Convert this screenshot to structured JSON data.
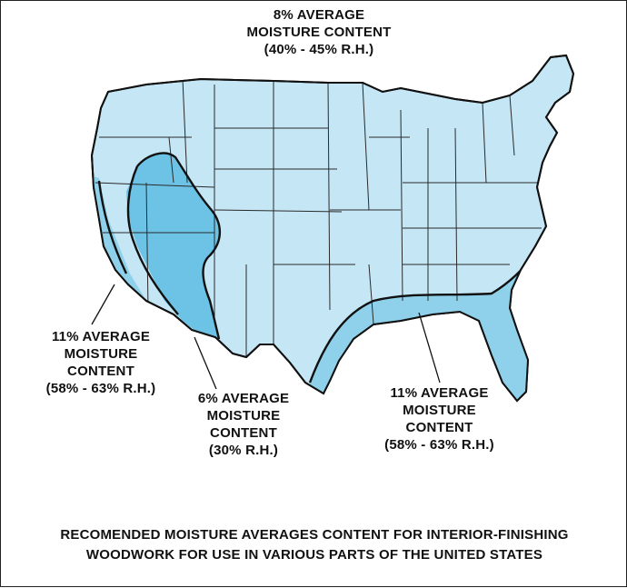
{
  "colors": {
    "region_8": "#c5e6f5",
    "region_11": "#8fd0ea",
    "region_6": "#6cc3e5",
    "state_lines": "#2a2a2a",
    "zone_lines": "#111111"
  },
  "labels": {
    "north": {
      "line1": "8% AVERAGE",
      "line2": "MOISTURE CONTENT",
      "line3": "(40% - 45% R.H.)"
    },
    "west_coast": {
      "line1": "11% AVERAGE",
      "line2": "MOISTURE",
      "line3": "CONTENT",
      "line4": "(58% - 63% R.H.)"
    },
    "southwest": {
      "line1": "6% AVERAGE",
      "line2": "MOISTURE",
      "line3": "CONTENT",
      "line4": "(30% R.H.)"
    },
    "southeast": {
      "line1": "11% AVERAGE",
      "line2": "MOISTURE",
      "line3": "CONTENT",
      "line4": "(58% - 63% R.H.)"
    }
  },
  "caption": {
    "line1": "RECOMENDED MOISTURE AVERAGES CONTENT FOR INTERIOR-FINISHING",
    "line2": "WOODWORK FOR USE IN VARIOUS PARTS OF THE UNITED STATES"
  }
}
